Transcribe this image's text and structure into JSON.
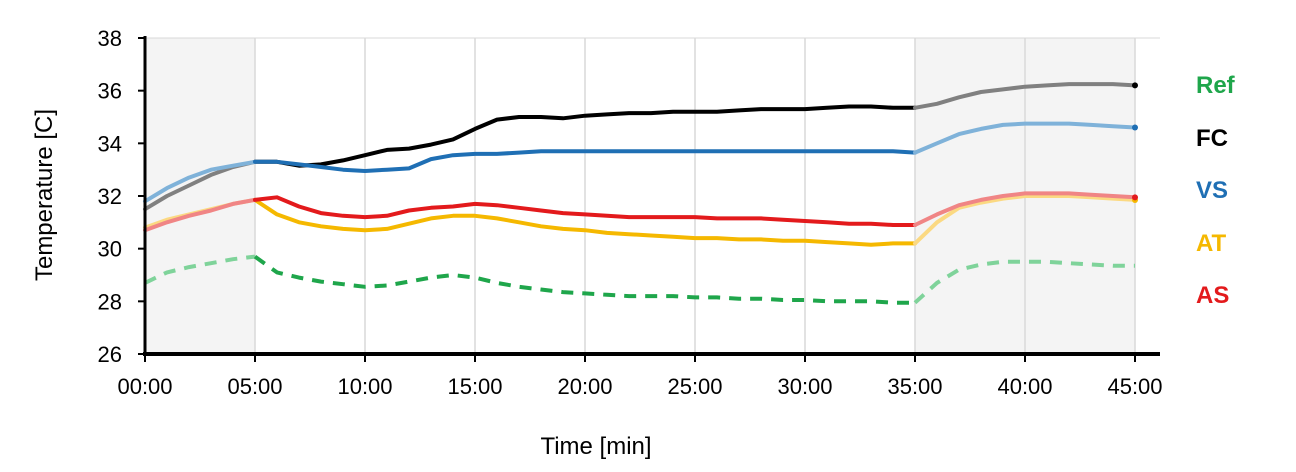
{
  "chart_data": {
    "type": "line",
    "xlabel": "Time [min]",
    "ylabel": "Temperature [C]",
    "xlim": [
      0,
      45
    ],
    "ylim": [
      26,
      38
    ],
    "x_ticks": [
      "00:00",
      "05:00",
      "10:00",
      "15:00",
      "20:00",
      "25:00",
      "30:00",
      "35:00",
      "40:00",
      "45:00"
    ],
    "y_ticks": [
      "26",
      "28",
      "30",
      "32",
      "34",
      "36",
      "38"
    ],
    "grid": "vertical",
    "shaded_intervals": [
      [
        0,
        5
      ],
      [
        35,
        45
      ]
    ],
    "shaded_color": "#f4f4f4",
    "legend_placement": "right",
    "series": [
      {
        "name": "Ref",
        "color": "#1fa64b",
        "shaded_color": "#7fd39a",
        "dashed": true,
        "points": [
          [
            0,
            28.7
          ],
          [
            1,
            29.1
          ],
          [
            2,
            29.3
          ],
          [
            3,
            29.45
          ],
          [
            4,
            29.6
          ],
          [
            5,
            29.7
          ],
          [
            6,
            29.1
          ],
          [
            7,
            28.9
          ],
          [
            8,
            28.75
          ],
          [
            9,
            28.65
          ],
          [
            10,
            28.55
          ],
          [
            11,
            28.6
          ],
          [
            12,
            28.75
          ],
          [
            13,
            28.9
          ],
          [
            14,
            29.0
          ],
          [
            15,
            28.9
          ],
          [
            16,
            28.7
          ],
          [
            17,
            28.55
          ],
          [
            18,
            28.45
          ],
          [
            19,
            28.35
          ],
          [
            20,
            28.3
          ],
          [
            21,
            28.25
          ],
          [
            22,
            28.2
          ],
          [
            23,
            28.2
          ],
          [
            24,
            28.2
          ],
          [
            25,
            28.15
          ],
          [
            26,
            28.15
          ],
          [
            27,
            28.1
          ],
          [
            28,
            28.1
          ],
          [
            29,
            28.05
          ],
          [
            30,
            28.05
          ],
          [
            31,
            28.0
          ],
          [
            32,
            28.0
          ],
          [
            33,
            28.0
          ],
          [
            34,
            27.95
          ],
          [
            35,
            27.95
          ],
          [
            36,
            28.7
          ],
          [
            37,
            29.2
          ],
          [
            38,
            29.4
          ],
          [
            39,
            29.5
          ],
          [
            40,
            29.5
          ],
          [
            41,
            29.5
          ],
          [
            42,
            29.45
          ],
          [
            43,
            29.4
          ],
          [
            44,
            29.35
          ],
          [
            45,
            29.35
          ]
        ]
      },
      {
        "name": "FC",
        "color": "#000000",
        "shaded_color": "#808080",
        "dashed": false,
        "points": [
          [
            0,
            31.5
          ],
          [
            1,
            32.0
          ],
          [
            2,
            32.4
          ],
          [
            3,
            32.8
          ],
          [
            4,
            33.1
          ],
          [
            5,
            33.3
          ],
          [
            6,
            33.3
          ],
          [
            7,
            33.15
          ],
          [
            8,
            33.2
          ],
          [
            9,
            33.35
          ],
          [
            10,
            33.55
          ],
          [
            11,
            33.75
          ],
          [
            12,
            33.8
          ],
          [
            13,
            33.95
          ],
          [
            14,
            34.15
          ],
          [
            15,
            34.55
          ],
          [
            16,
            34.9
          ],
          [
            17,
            35.0
          ],
          [
            18,
            35.0
          ],
          [
            19,
            34.95
          ],
          [
            20,
            35.05
          ],
          [
            21,
            35.1
          ],
          [
            22,
            35.15
          ],
          [
            23,
            35.15
          ],
          [
            24,
            35.2
          ],
          [
            25,
            35.2
          ],
          [
            26,
            35.2
          ],
          [
            27,
            35.25
          ],
          [
            28,
            35.3
          ],
          [
            29,
            35.3
          ],
          [
            30,
            35.3
          ],
          [
            31,
            35.35
          ],
          [
            32,
            35.4
          ],
          [
            33,
            35.4
          ],
          [
            34,
            35.35
          ],
          [
            35,
            35.35
          ],
          [
            36,
            35.5
          ],
          [
            37,
            35.75
          ],
          [
            38,
            35.95
          ],
          [
            39,
            36.05
          ],
          [
            40,
            36.15
          ],
          [
            41,
            36.2
          ],
          [
            42,
            36.25
          ],
          [
            43,
            36.25
          ],
          [
            44,
            36.25
          ],
          [
            45,
            36.2
          ]
        ]
      },
      {
        "name": "VS",
        "color": "#1f6fb4",
        "shaded_color": "#7fb2d9",
        "dashed": false,
        "points": [
          [
            0,
            31.8
          ],
          [
            1,
            32.3
          ],
          [
            2,
            32.7
          ],
          [
            3,
            33.0
          ],
          [
            4,
            33.15
          ],
          [
            5,
            33.3
          ],
          [
            6,
            33.3
          ],
          [
            7,
            33.2
          ],
          [
            8,
            33.1
          ],
          [
            9,
            33.0
          ],
          [
            10,
            32.95
          ],
          [
            11,
            33.0
          ],
          [
            12,
            33.05
          ],
          [
            13,
            33.4
          ],
          [
            14,
            33.55
          ],
          [
            15,
            33.6
          ],
          [
            16,
            33.6
          ],
          [
            17,
            33.65
          ],
          [
            18,
            33.7
          ],
          [
            19,
            33.7
          ],
          [
            20,
            33.7
          ],
          [
            21,
            33.7
          ],
          [
            22,
            33.7
          ],
          [
            23,
            33.7
          ],
          [
            24,
            33.7
          ],
          [
            25,
            33.7
          ],
          [
            26,
            33.7
          ],
          [
            27,
            33.7
          ],
          [
            28,
            33.7
          ],
          [
            29,
            33.7
          ],
          [
            30,
            33.7
          ],
          [
            31,
            33.7
          ],
          [
            32,
            33.7
          ],
          [
            33,
            33.7
          ],
          [
            34,
            33.7
          ],
          [
            35,
            33.65
          ],
          [
            36,
            34.0
          ],
          [
            37,
            34.35
          ],
          [
            38,
            34.55
          ],
          [
            39,
            34.7
          ],
          [
            40,
            34.75
          ],
          [
            41,
            34.75
          ],
          [
            42,
            34.75
          ],
          [
            43,
            34.7
          ],
          [
            44,
            34.65
          ],
          [
            45,
            34.6
          ]
        ]
      },
      {
        "name": "AT",
        "color": "#f5b800",
        "shaded_color": "#fbd982",
        "dashed": false,
        "points": [
          [
            0,
            30.8
          ],
          [
            1,
            31.1
          ],
          [
            2,
            31.3
          ],
          [
            3,
            31.5
          ],
          [
            4,
            31.7
          ],
          [
            5,
            31.85
          ],
          [
            6,
            31.3
          ],
          [
            7,
            31.0
          ],
          [
            8,
            30.85
          ],
          [
            9,
            30.75
          ],
          [
            10,
            30.7
          ],
          [
            11,
            30.75
          ],
          [
            12,
            30.95
          ],
          [
            13,
            31.15
          ],
          [
            14,
            31.25
          ],
          [
            15,
            31.25
          ],
          [
            16,
            31.15
          ],
          [
            17,
            31.0
          ],
          [
            18,
            30.85
          ],
          [
            19,
            30.75
          ],
          [
            20,
            30.7
          ],
          [
            21,
            30.6
          ],
          [
            22,
            30.55
          ],
          [
            23,
            30.5
          ],
          [
            24,
            30.45
          ],
          [
            25,
            30.4
          ],
          [
            26,
            30.4
          ],
          [
            27,
            30.35
          ],
          [
            28,
            30.35
          ],
          [
            29,
            30.3
          ],
          [
            30,
            30.3
          ],
          [
            31,
            30.25
          ],
          [
            32,
            30.2
          ],
          [
            33,
            30.15
          ],
          [
            34,
            30.2
          ],
          [
            35,
            30.2
          ],
          [
            36,
            31.0
          ],
          [
            37,
            31.55
          ],
          [
            38,
            31.75
          ],
          [
            39,
            31.9
          ],
          [
            40,
            32.0
          ],
          [
            41,
            32.0
          ],
          [
            42,
            32.0
          ],
          [
            43,
            31.95
          ],
          [
            44,
            31.9
          ],
          [
            45,
            31.85
          ]
        ]
      },
      {
        "name": "AS",
        "color": "#e31a1c",
        "shaded_color": "#f08585",
        "dashed": false,
        "points": [
          [
            0,
            30.7
          ],
          [
            1,
            31.0
          ],
          [
            2,
            31.25
          ],
          [
            3,
            31.45
          ],
          [
            4,
            31.7
          ],
          [
            5,
            31.85
          ],
          [
            6,
            31.95
          ],
          [
            7,
            31.6
          ],
          [
            8,
            31.35
          ],
          [
            9,
            31.25
          ],
          [
            10,
            31.2
          ],
          [
            11,
            31.25
          ],
          [
            12,
            31.45
          ],
          [
            13,
            31.55
          ],
          [
            14,
            31.6
          ],
          [
            15,
            31.7
          ],
          [
            16,
            31.65
          ],
          [
            17,
            31.55
          ],
          [
            18,
            31.45
          ],
          [
            19,
            31.35
          ],
          [
            20,
            31.3
          ],
          [
            21,
            31.25
          ],
          [
            22,
            31.2
          ],
          [
            23,
            31.2
          ],
          [
            24,
            31.2
          ],
          [
            25,
            31.2
          ],
          [
            26,
            31.15
          ],
          [
            27,
            31.15
          ],
          [
            28,
            31.15
          ],
          [
            29,
            31.1
          ],
          [
            30,
            31.05
          ],
          [
            31,
            31.0
          ],
          [
            32,
            30.95
          ],
          [
            33,
            30.95
          ],
          [
            34,
            30.9
          ],
          [
            35,
            30.9
          ],
          [
            36,
            31.3
          ],
          [
            37,
            31.65
          ],
          [
            38,
            31.85
          ],
          [
            39,
            32.0
          ],
          [
            40,
            32.1
          ],
          [
            41,
            32.1
          ],
          [
            42,
            32.1
          ],
          [
            43,
            32.05
          ],
          [
            44,
            32.0
          ],
          [
            45,
            31.95
          ]
        ]
      }
    ]
  }
}
